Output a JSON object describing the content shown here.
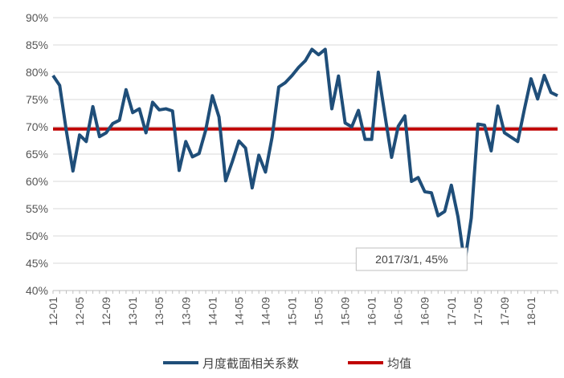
{
  "chart_data": {
    "type": "line",
    "title": "",
    "xlabel": "",
    "ylabel": "",
    "ylim": [
      0.4,
      0.9
    ],
    "y_ticks": [
      "90%",
      "85%",
      "80%",
      "75%",
      "70%",
      "65%",
      "60%",
      "55%",
      "50%",
      "45%",
      "40%"
    ],
    "x_tick_labels": [
      "12-01",
      "12-05",
      "12-09",
      "13-01",
      "13-05",
      "13-09",
      "14-01",
      "14-05",
      "14-09",
      "15-01",
      "15-05",
      "15-09",
      "16-01",
      "16-05",
      "16-09",
      "17-01",
      "17-05",
      "17-09",
      "18-01"
    ],
    "grid": "horizontal",
    "legend": "bottom",
    "series": [
      {
        "name": "月度截面相关系数",
        "color": "#1F4E79",
        "start": "2012-01",
        "values": [
          0.794,
          0.776,
          0.693,
          0.619,
          0.685,
          0.673,
          0.737,
          0.682,
          0.689,
          0.706,
          0.712,
          0.768,
          0.726,
          0.733,
          0.689,
          0.745,
          0.731,
          0.733,
          0.729,
          0.62,
          0.673,
          0.645,
          0.651,
          0.694,
          0.757,
          0.718,
          0.601,
          0.636,
          0.674,
          0.661,
          0.588,
          0.648,
          0.617,
          0.681,
          0.773,
          0.781,
          0.794,
          0.809,
          0.821,
          0.842,
          0.832,
          0.842,
          0.733,
          0.793,
          0.707,
          0.7,
          0.73,
          0.677,
          0.677,
          0.8,
          0.721,
          0.644,
          0.701,
          0.72,
          0.6,
          0.607,
          0.581,
          0.579,
          0.537,
          0.545,
          0.593,
          0.535,
          0.45,
          0.533,
          0.705,
          0.703,
          0.656,
          0.738,
          0.689,
          0.681,
          0.673,
          0.732,
          0.788,
          0.751,
          0.794,
          0.763,
          0.757
        ]
      },
      {
        "name": "均值",
        "color": "#C00000",
        "values": [
          0.696
        ]
      }
    ],
    "annotations": [
      {
        "label": "2017/3/1, 45%",
        "x": "2017-03",
        "y": 0.45
      }
    ]
  }
}
